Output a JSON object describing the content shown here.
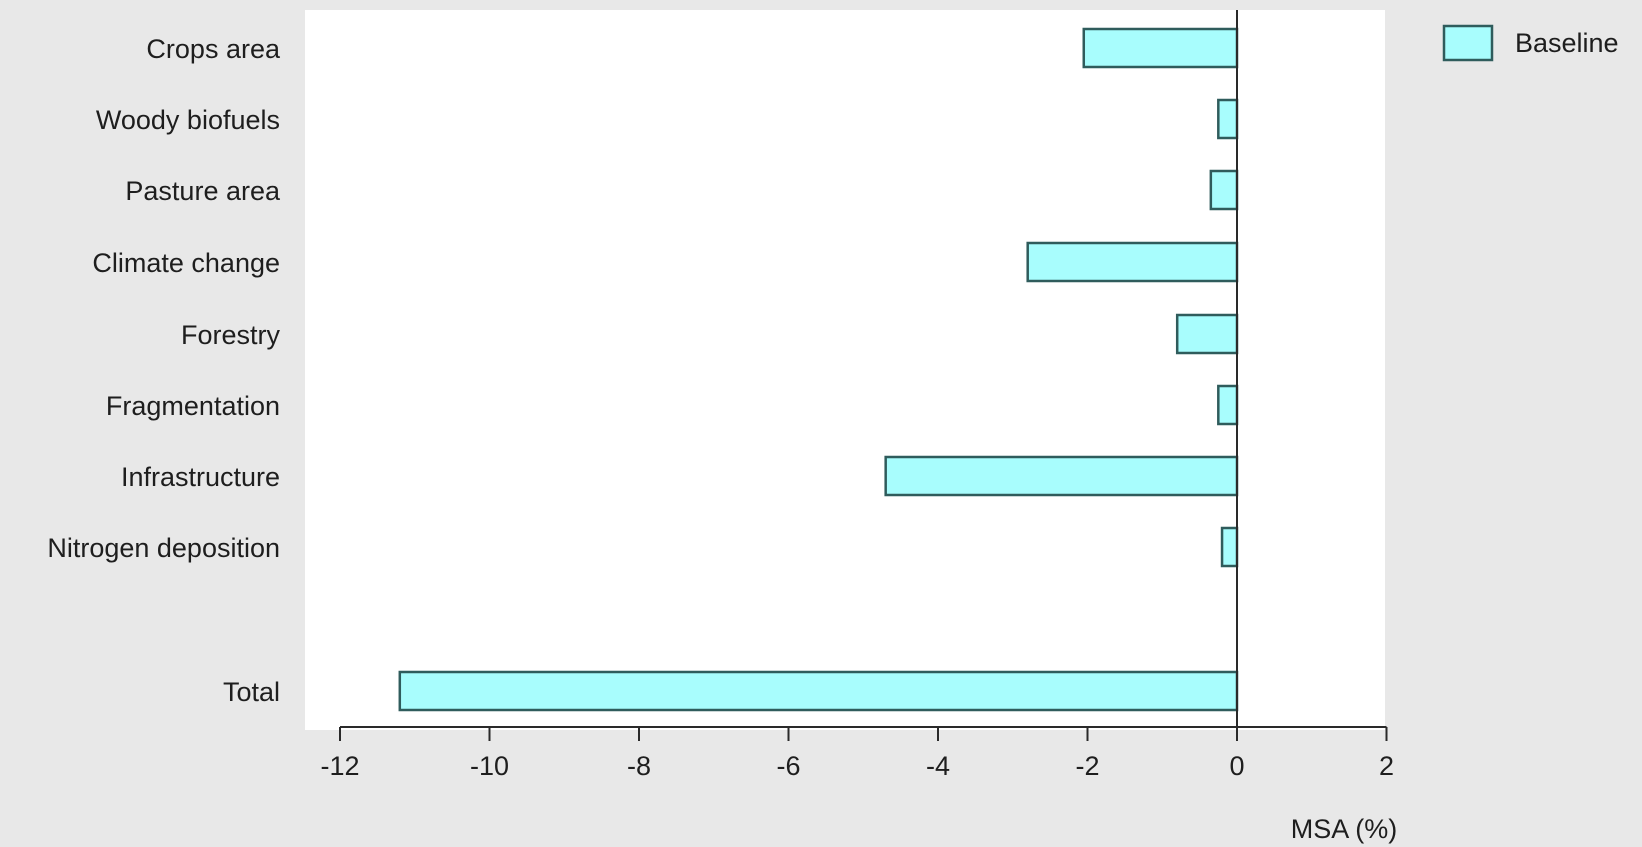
{
  "chart_data": {
    "type": "bar",
    "orientation": "horizontal",
    "categories": [
      "Crops area",
      "Woody biofuels",
      "Pasture area",
      "Climate change",
      "Forestry",
      "Fragmentation",
      "Infrastructure",
      "Nitrogen deposition",
      "Total"
    ],
    "series": [
      {
        "name": "Baseline",
        "values": [
          -2.05,
          -0.25,
          -0.35,
          -2.8,
          -0.8,
          -0.25,
          -4.7,
          -0.2,
          -11.2
        ],
        "color": "#a8fdfd",
        "edge_color": "#2f5c5c"
      }
    ],
    "xlabel": "MSA (%)",
    "ylabel": "",
    "title": "",
    "xlim": [
      -12,
      2
    ],
    "xticks": [
      "-12",
      "-10",
      "-8",
      "-6",
      "-4",
      "-2",
      "0",
      "2"
    ],
    "grid": false,
    "legend_position": "top-right"
  },
  "colors": {
    "background": "#e8e8e8",
    "plot_background": "#ffffff",
    "axis": "#2a2a2a"
  }
}
